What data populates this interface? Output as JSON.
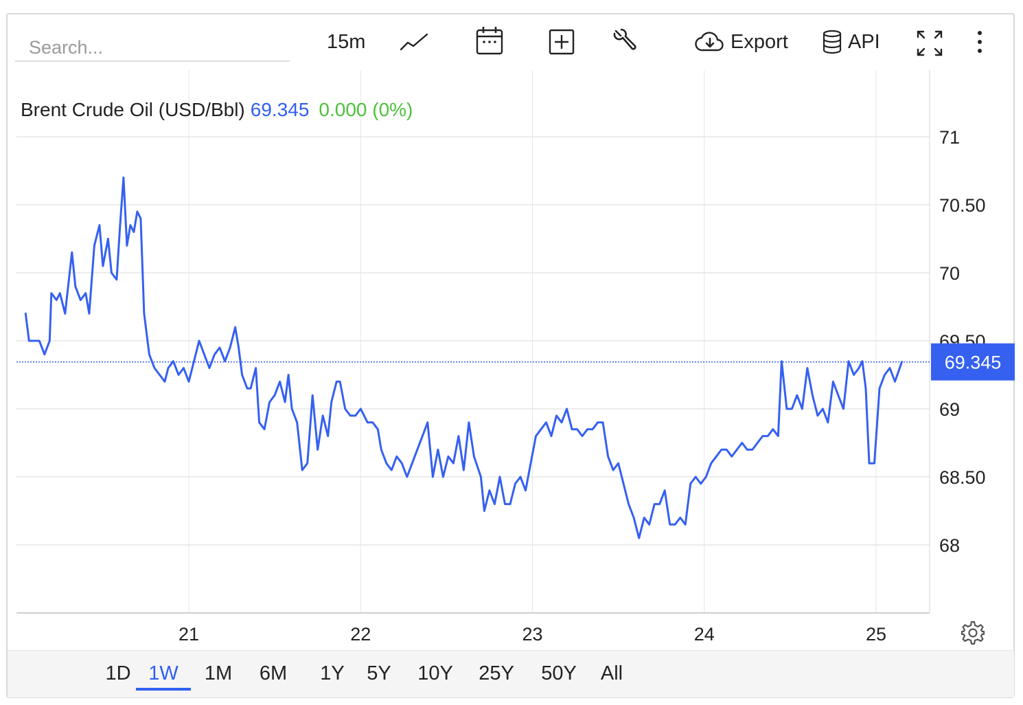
{
  "toolbar": {
    "search_placeholder": "Search...",
    "interval": "15m",
    "export_label": "Export",
    "api_label": "API",
    "icons": [
      "line-chart-icon",
      "calendar-icon",
      "add-icon",
      "wrench-icon",
      "cloud-download-icon",
      "database-icon",
      "fullscreen-icon",
      "more-vertical-icon"
    ]
  },
  "header": {
    "name": "Brent Crude Oil (USD/Bbl)",
    "price": "69.345",
    "change": "0.000 (0%)"
  },
  "colors": {
    "line": "#3560f0",
    "change": "#4cc13a",
    "grid": "#e6e6e6",
    "badge": "#3560f0"
  },
  "ranges": [
    "1D",
    "1W",
    "1M",
    "6M",
    "1Y",
    "5Y",
    "10Y",
    "25Y",
    "50Y",
    "All"
  ],
  "active_range": "1W",
  "chart_data": {
    "type": "line",
    "title": "Brent Crude Oil (USD/Bbl)",
    "last_value": 69.345,
    "last_value_label": "69.345",
    "ylim": [
      67.5,
      71.5
    ],
    "yticks": [
      68,
      68.5,
      69,
      69.5,
      70,
      70.5,
      71
    ],
    "ytick_labels": [
      "68",
      "68.50",
      "69",
      "69.50",
      "70",
      "70.50",
      "71"
    ],
    "xlim": [
      20.05,
      25.3
    ],
    "xticks": [
      21,
      22,
      23,
      24,
      25
    ],
    "xtick_labels": [
      "21",
      "22",
      "23",
      "24",
      "25"
    ],
    "grid": true,
    "series": [
      {
        "points": [
          [
            20.05,
            69.7
          ],
          [
            20.07,
            69.5
          ],
          [
            20.1,
            69.5
          ],
          [
            20.13,
            69.5
          ],
          [
            20.16,
            69.4
          ],
          [
            20.19,
            69.5
          ],
          [
            20.2,
            69.85
          ],
          [
            20.23,
            69.8
          ],
          [
            20.25,
            69.85
          ],
          [
            20.28,
            69.7
          ],
          [
            20.32,
            70.15
          ],
          [
            20.34,
            69.9
          ],
          [
            20.37,
            69.8
          ],
          [
            20.4,
            69.85
          ],
          [
            20.42,
            69.7
          ],
          [
            20.45,
            70.2
          ],
          [
            20.48,
            70.35
          ],
          [
            20.5,
            70.05
          ],
          [
            20.53,
            70.25
          ],
          [
            20.55,
            70.0
          ],
          [
            20.58,
            69.95
          ],
          [
            20.6,
            70.35
          ],
          [
            20.62,
            70.7
          ],
          [
            20.64,
            70.2
          ],
          [
            20.66,
            70.35
          ],
          [
            20.68,
            70.3
          ],
          [
            20.7,
            70.45
          ],
          [
            20.72,
            70.4
          ],
          [
            20.74,
            69.7
          ],
          [
            20.77,
            69.4
          ],
          [
            20.8,
            69.3
          ],
          [
            20.83,
            69.25
          ],
          [
            20.86,
            69.2
          ],
          [
            20.88,
            69.3
          ],
          [
            20.91,
            69.35
          ],
          [
            20.94,
            69.25
          ],
          [
            20.97,
            69.3
          ],
          [
            21.0,
            69.2
          ],
          [
            21.03,
            69.35
          ],
          [
            21.06,
            69.5
          ],
          [
            21.09,
            69.4
          ],
          [
            21.12,
            69.3
          ],
          [
            21.15,
            69.4
          ],
          [
            21.18,
            69.45
          ],
          [
            21.21,
            69.35
          ],
          [
            21.24,
            69.45
          ],
          [
            21.27,
            69.6
          ],
          [
            21.29,
            69.45
          ],
          [
            21.31,
            69.25
          ],
          [
            21.34,
            69.15
          ],
          [
            21.36,
            69.15
          ],
          [
            21.39,
            69.3
          ],
          [
            21.41,
            68.9
          ],
          [
            21.44,
            68.85
          ],
          [
            21.47,
            69.05
          ],
          [
            21.5,
            69.1
          ],
          [
            21.53,
            69.2
          ],
          [
            21.56,
            69.05
          ],
          [
            21.58,
            69.25
          ],
          [
            21.6,
            69.0
          ],
          [
            21.63,
            68.9
          ],
          [
            21.66,
            68.55
          ],
          [
            21.69,
            68.6
          ],
          [
            21.72,
            69.1
          ],
          [
            21.75,
            68.7
          ],
          [
            21.78,
            68.95
          ],
          [
            21.81,
            68.8
          ],
          [
            21.83,
            69.05
          ],
          [
            21.86,
            69.2
          ],
          [
            21.88,
            69.2
          ],
          [
            21.91,
            69.0
          ],
          [
            21.94,
            68.95
          ],
          [
            21.97,
            68.95
          ],
          [
            22.0,
            69.0
          ],
          [
            22.04,
            68.9
          ],
          [
            22.07,
            68.9
          ],
          [
            22.1,
            68.85
          ],
          [
            22.12,
            68.7
          ],
          [
            22.15,
            68.6
          ],
          [
            22.18,
            68.55
          ],
          [
            22.21,
            68.65
          ],
          [
            22.24,
            68.6
          ],
          [
            22.27,
            68.5
          ],
          [
            22.3,
            68.6
          ],
          [
            22.33,
            68.7
          ],
          [
            22.36,
            68.8
          ],
          [
            22.39,
            68.9
          ],
          [
            22.42,
            68.5
          ],
          [
            22.45,
            68.7
          ],
          [
            22.48,
            68.5
          ],
          [
            22.51,
            68.65
          ],
          [
            22.54,
            68.6
          ],
          [
            22.57,
            68.8
          ],
          [
            22.6,
            68.55
          ],
          [
            22.63,
            68.9
          ],
          [
            22.66,
            68.65
          ],
          [
            22.7,
            68.5
          ],
          [
            22.72,
            68.25
          ],
          [
            22.75,
            68.4
          ],
          [
            22.78,
            68.3
          ],
          [
            22.81,
            68.5
          ],
          [
            22.84,
            68.3
          ],
          [
            22.87,
            68.3
          ],
          [
            22.9,
            68.45
          ],
          [
            22.93,
            68.5
          ],
          [
            22.96,
            68.4
          ],
          [
            22.99,
            68.6
          ],
          [
            23.02,
            68.8
          ],
          [
            23.05,
            68.85
          ],
          [
            23.08,
            68.9
          ],
          [
            23.11,
            68.8
          ],
          [
            23.14,
            68.95
          ],
          [
            23.17,
            68.9
          ],
          [
            23.2,
            69.0
          ],
          [
            23.23,
            68.85
          ],
          [
            23.26,
            68.85
          ],
          [
            23.29,
            68.8
          ],
          [
            23.32,
            68.85
          ],
          [
            23.35,
            68.85
          ],
          [
            23.38,
            68.9
          ],
          [
            23.41,
            68.9
          ],
          [
            23.44,
            68.65
          ],
          [
            23.47,
            68.55
          ],
          [
            23.5,
            68.6
          ],
          [
            23.53,
            68.45
          ],
          [
            23.56,
            68.3
          ],
          [
            23.59,
            68.2
          ],
          [
            23.62,
            68.05
          ],
          [
            23.65,
            68.2
          ],
          [
            23.68,
            68.15
          ],
          [
            23.71,
            68.3
          ],
          [
            23.74,
            68.3
          ],
          [
            23.77,
            68.4
          ],
          [
            23.8,
            68.15
          ],
          [
            23.83,
            68.15
          ],
          [
            23.86,
            68.2
          ],
          [
            23.89,
            68.15
          ],
          [
            23.92,
            68.45
          ],
          [
            23.95,
            68.5
          ],
          [
            23.98,
            68.45
          ],
          [
            24.01,
            68.5
          ],
          [
            24.04,
            68.6
          ],
          [
            24.07,
            68.65
          ],
          [
            24.1,
            68.7
          ],
          [
            24.13,
            68.7
          ],
          [
            24.16,
            68.65
          ],
          [
            24.19,
            68.7
          ],
          [
            24.22,
            68.75
          ],
          [
            24.25,
            68.7
          ],
          [
            24.28,
            68.7
          ],
          [
            24.31,
            68.75
          ],
          [
            24.34,
            68.8
          ],
          [
            24.37,
            68.8
          ],
          [
            24.4,
            68.85
          ],
          [
            24.43,
            68.8
          ],
          [
            24.45,
            69.35
          ],
          [
            24.48,
            69.0
          ],
          [
            24.51,
            69.0
          ],
          [
            24.54,
            69.1
          ],
          [
            24.57,
            69.0
          ],
          [
            24.6,
            69.3
          ],
          [
            24.63,
            69.1
          ],
          [
            24.66,
            68.95
          ],
          [
            24.69,
            69.0
          ],
          [
            24.72,
            68.9
          ],
          [
            24.75,
            69.2
          ],
          [
            24.78,
            69.1
          ],
          [
            24.81,
            69.0
          ],
          [
            24.84,
            69.35
          ],
          [
            24.87,
            69.25
          ],
          [
            24.9,
            69.3
          ],
          [
            24.92,
            69.35
          ],
          [
            24.94,
            69.15
          ],
          [
            24.96,
            68.6
          ],
          [
            24.99,
            68.6
          ],
          [
            25.02,
            69.15
          ],
          [
            25.05,
            69.25
          ],
          [
            25.08,
            69.3
          ],
          [
            25.11,
            69.2
          ],
          [
            25.15,
            69.345
          ]
        ]
      }
    ]
  }
}
